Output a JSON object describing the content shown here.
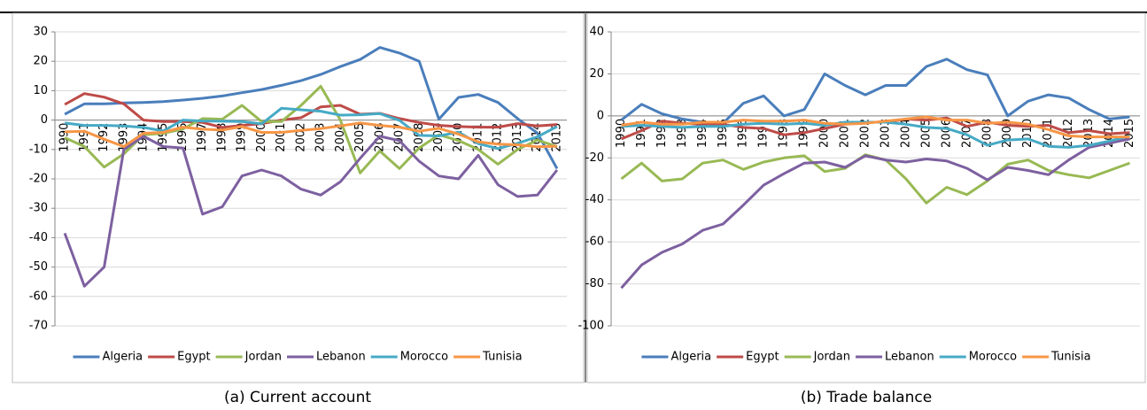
{
  "chart_data": [
    {
      "type": "line",
      "caption": "(a) Current account",
      "categories": [
        "1990",
        "1991",
        "1992",
        "1993",
        "1994",
        "1995",
        "1996",
        "1997",
        "1998",
        "1999",
        "2000",
        "2001",
        "2002",
        "2003",
        "2004",
        "2005",
        "2006",
        "2007",
        "2008",
        "2009",
        "2010",
        "2011",
        "2012",
        "2013",
        "2014",
        "2015"
      ],
      "ylim": [
        -70,
        30
      ],
      "yticks": [
        -70,
        -60,
        -50,
        -40,
        -30,
        -20,
        -10,
        0,
        10,
        20,
        30
      ],
      "grid": true,
      "legend": "bottom",
      "series": [
        {
          "name": "Algeria",
          "color": "#4a7ebb",
          "values": [
            2,
            5.5,
            5.5,
            5.8,
            6,
            6.3,
            6.8,
            7.4,
            8.2,
            9.3,
            10.4,
            11.8,
            13.4,
            15.5,
            18.2,
            20.6,
            24.7,
            22.8,
            20,
            0.3,
            7.7,
            8.7,
            6,
            0.5,
            -4.4,
            -16.5
          ]
        },
        {
          "name": "Egypt",
          "color": "#be4b48",
          "values": [
            5.3,
            9,
            7.8,
            5.5,
            0,
            -0.5,
            -0.5,
            -0.8,
            -2.5,
            -1.8,
            -1.2,
            0,
            0.8,
            4.5,
            5,
            2,
            2.3,
            0.5,
            -0.8,
            -1.8,
            -2.2,
            -2.4,
            -2.4,
            -1.2,
            -2,
            -1.5
          ]
        },
        {
          "name": "Jordan",
          "color": "#98b954",
          "values": [
            -6,
            -9,
            -16,
            -11.5,
            -5,
            -4.5,
            -3,
            0.5,
            0.3,
            5,
            -0.5,
            -0.5,
            5,
            11.5,
            0,
            -18,
            -10.5,
            -16.5,
            -9.5,
            -5,
            -7,
            -10,
            -15,
            -10,
            -6.8,
            -9
          ]
        },
        {
          "name": "Lebanon",
          "color": "#7d60a0",
          "values": [
            -38.5,
            -56.5,
            -50,
            -10,
            -5.5,
            -9,
            -9.5,
            -32,
            -29.5,
            -19,
            -17,
            -19,
            -23.5,
            -25.5,
            -21,
            -13,
            -5.5,
            -7,
            -14,
            -19,
            -20,
            -12,
            -22,
            -26,
            -25.5,
            -17
          ]
        },
        {
          "name": "Morocco",
          "color": "#46aac5",
          "values": [
            -1,
            -1.8,
            -1.8,
            -2,
            -2.5,
            -3.7,
            0,
            -0.3,
            -0.4,
            -0.5,
            -1.3,
            4,
            3.5,
            3,
            1.7,
            1.8,
            2.2,
            -0.1,
            -5.2,
            -5.4,
            -4.1,
            -8,
            -9.7,
            -7.9,
            -5.7,
            -2.2
          ]
        },
        {
          "name": "Tunisia",
          "color": "#f79646",
          "values": [
            -4,
            -3.8,
            -6.5,
            -9,
            -4.5,
            -4.2,
            -2.4,
            -3.1,
            -3.4,
            -2.2,
            -4.2,
            -4.2,
            -3.5,
            -2.9,
            -2,
            -1,
            -1.8,
            -2.4,
            -3.8,
            -2.8,
            -4.8,
            -7.4,
            -8.2,
            -8.4,
            -9.1,
            -8.9
          ]
        }
      ]
    },
    {
      "type": "line",
      "caption": "(b) Trade balance",
      "categories": [
        "1990",
        "1991",
        "1992",
        "1993",
        "1994",
        "1995",
        "1996",
        "1997",
        "1998",
        "1999",
        "2000",
        "2001",
        "2002",
        "2003",
        "2004",
        "2005",
        "2006",
        "2007",
        "2008",
        "2009",
        "2010",
        "2011",
        "2012",
        "2013",
        "2014",
        "2015"
      ],
      "ylim": [
        -100,
        40
      ],
      "yticks": [
        -100,
        -80,
        -60,
        -40,
        -20,
        0,
        20,
        40
      ],
      "grid": true,
      "legend": "bottom",
      "series": [
        {
          "name": "Algeria",
          "color": "#4a7ebb",
          "values": [
            -2,
            5.5,
            1,
            -1.5,
            -3,
            -3.5,
            6,
            9.5,
            0,
            3,
            20,
            14.5,
            10,
            14.5,
            14.5,
            23.5,
            27,
            22,
            19.5,
            0,
            7,
            10,
            8.5,
            3,
            -1.5,
            -0.5
          ]
        },
        {
          "name": "Egypt",
          "color": "#be4b48",
          "values": [
            -11,
            -7,
            -2.5,
            -3.5,
            -4,
            -4,
            -5.5,
            -6,
            -9,
            -8,
            -6,
            -4,
            -3,
            -3,
            -1.5,
            -2,
            -1,
            -5,
            -3,
            -4.5,
            -5,
            -4.5,
            -8,
            -7,
            -8.5,
            -8
          ]
        },
        {
          "name": "Jordan",
          "color": "#98b954",
          "values": [
            -30,
            -22.5,
            -31,
            -30,
            -22.5,
            -21,
            -25.5,
            -22,
            -20,
            -19,
            -26.5,
            -25,
            -18.5,
            -21,
            -30,
            -41.5,
            -34,
            -37.5,
            -31,
            -23,
            -21,
            -26,
            -28,
            -29.5,
            -26,
            -22.5
          ]
        },
        {
          "name": "Lebanon",
          "color": "#7d60a0",
          "values": [
            -82,
            -71,
            -65,
            -61,
            -54.5,
            -51.5,
            -42.5,
            -33,
            -27.5,
            -22.5,
            -22,
            -24.5,
            -19,
            -21,
            -22,
            -20.5,
            -21.5,
            -25,
            -30.5,
            -24.5,
            -26,
            -28,
            -21,
            -15,
            -13,
            -11
          ]
        },
        {
          "name": "Morocco",
          "color": "#46aac5",
          "values": [
            -5,
            -4.5,
            -5,
            -5.5,
            -5,
            -5,
            -4,
            -3.5,
            -4,
            -3.5,
            -4.5,
            -3,
            -3,
            -3,
            -4,
            -5.5,
            -6,
            -9,
            -14,
            -11.5,
            -11,
            -14.5,
            -15,
            -14,
            -12,
            -9.5
          ]
        },
        {
          "name": "Tunisia",
          "color": "#f79646",
          "values": [
            -4.5,
            -3,
            -4,
            -4,
            -3,
            -3,
            -2,
            -2.5,
            -2.5,
            -2,
            -3.5,
            -4,
            -3.5,
            -2.5,
            -1.5,
            -0.5,
            -2,
            -2,
            -3.5,
            -3,
            -4,
            -6.5,
            -9.5,
            -10,
            -10,
            -10
          ]
        }
      ]
    }
  ]
}
